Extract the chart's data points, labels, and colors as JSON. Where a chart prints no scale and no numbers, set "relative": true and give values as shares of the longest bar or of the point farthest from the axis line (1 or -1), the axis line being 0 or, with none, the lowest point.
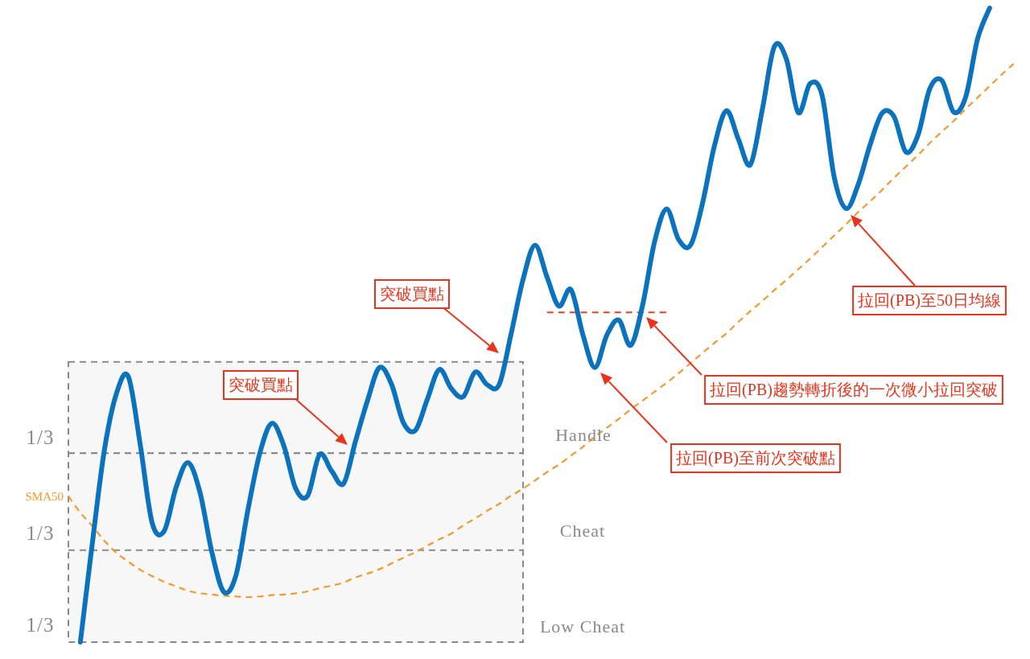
{
  "chart_data": {
    "type": "line",
    "relative": true,
    "categories": [
      null,
      null,
      null,
      null,
      null,
      null,
      null,
      null,
      null,
      null,
      null,
      null,
      null,
      null,
      null,
      null,
      null,
      null,
      null,
      null,
      null,
      null,
      null,
      null,
      null,
      null,
      null,
      null,
      null,
      null,
      null,
      null,
      null,
      null,
      null,
      null,
      null,
      null,
      null,
      null,
      null,
      null,
      null,
      null,
      null,
      null,
      null,
      null,
      null,
      null,
      null,
      null,
      null,
      null,
      null,
      null,
      null,
      null,
      null,
      null,
      null,
      null,
      null,
      null,
      null,
      null,
      null,
      null,
      null,
      null,
      null,
      null,
      null,
      null,
      null,
      null,
      null,
      null,
      null,
      null
    ],
    "series": [
      {
        "color": "#0b72bd",
        "values": [
          null,
          0,
          0.156,
          0.302,
          0.391,
          0.419,
          0.312,
          0.188,
          0.175,
          0.244,
          0.283,
          0.236,
          0.141,
          0.079,
          0.105,
          0.208,
          0.298,
          0.345,
          0.31,
          0.242,
          0.231,
          0.296,
          0.27,
          0.25,
          0.317,
          0.381,
          0.433,
          0.407,
          0.346,
          0.334,
          0.383,
          0.43,
          0.4,
          0.387,
          0.426,
          0.406,
          0.406,
          0.486,
          0.572,
          0.626,
          0.576,
          0.53,
          0.556,
          0.485,
          0.433,
          0.484,
          0.508,
          0.468,
          0.532,
          0.632,
          0.683,
          0.635,
          0.626,
          0.692,
          0.783,
          0.838,
          0.793,
          0.753,
          0.84,
          0.939,
          0.92,
          0.835,
          0.881,
          0.862,
          0.734,
          0.684,
          0.721,
          0.784,
          0.834,
          0.829,
          0.773,
          0.799,
          0.873,
          0.886,
          0.836,
          0.86,
          0.952,
          1,
          null,
          null
        ]
      },
      {
        "name": "SMA50",
        "color": "#f39a2e",
        "line_style": "dashed",
        "values": [
          0.23,
          0.204,
          0.183,
          0.16,
          0.141,
          0.127,
          0.114,
          0.104,
          0.095,
          0.088,
          0.081,
          0.077,
          0.075,
          0.073,
          0.072,
          0.071,
          0.072,
          0.074,
          0.075,
          0.077,
          0.08,
          0.085,
          0.089,
          0.094,
          0.102,
          0.108,
          0.115,
          0.124,
          0.133,
          0.142,
          0.152,
          0.162,
          0.171,
          0.184,
          0.195,
          0.207,
          0.218,
          0.231,
          0.242,
          0.255,
          0.268,
          0.28,
          0.294,
          0.308,
          0.324,
          0.338,
          0.352,
          0.367,
          0.381,
          0.395,
          0.409,
          0.424,
          0.44,
          0.456,
          0.472,
          0.487,
          0.505,
          0.522,
          0.538,
          0.555,
          0.571,
          0.588,
          0.605,
          0.623,
          0.641,
          0.659,
          0.678,
          0.695,
          0.713,
          0.732,
          0.75,
          0.768,
          0.787,
          0.805,
          0.822,
          0.841,
          0.859,
          0.877,
          0.895,
          0.912
        ]
      },
      {
        "color": "#8a8a8a",
        "line_style": "dashed",
        "values": [
          0.298,
          0.298,
          0.298,
          0.298,
          0.298,
          0.298,
          0.298,
          0.298,
          0.298,
          0.298,
          0.298,
          0.298,
          0.298,
          0.298,
          0.298,
          0.298,
          0.298,
          0.298,
          0.298,
          0.298,
          0.298,
          0.298,
          0.298,
          0.298,
          0.298,
          0.298,
          0.298,
          0.298,
          0.298,
          0.298,
          0.298,
          0.298,
          0.298,
          0.298,
          0.298,
          0.298,
          0.298,
          0.298,
          0.298,
          null,
          null,
          null,
          null,
          null,
          null,
          null,
          null,
          null,
          null,
          null,
          null,
          null,
          null,
          null,
          null,
          null,
          null,
          null,
          null,
          null,
          null,
          null,
          null,
          null,
          null,
          null,
          null,
          null,
          null,
          null,
          null,
          null,
          null,
          null,
          null,
          null,
          null,
          null,
          null,
          null
        ],
        "lower": [
          0,
          0,
          0,
          0,
          0,
          0,
          0,
          0,
          0,
          0,
          0,
          0,
          0,
          0,
          0,
          0,
          0,
          0,
          0,
          0,
          0,
          0,
          0,
          0,
          0,
          0,
          0,
          0,
          0,
          0,
          0,
          0,
          0,
          0,
          0,
          0,
          0,
          0,
          0,
          null,
          null,
          null,
          null,
          null,
          null,
          null,
          null,
          null,
          null,
          null,
          null,
          null,
          null,
          null,
          null,
          null,
          null,
          null,
          null,
          null,
          null,
          null,
          null,
          null,
          null,
          null,
          null,
          null,
          null,
          null,
          null,
          null,
          null,
          null,
          null,
          null,
          null,
          null,
          null,
          null
        ],
        "upper": [
          0.442,
          0.442,
          0.442,
          0.442,
          0.442,
          0.442,
          0.442,
          0.442,
          0.442,
          0.442,
          0.442,
          0.442,
          0.442,
          0.442,
          0.442,
          0.442,
          0.442,
          0.442,
          0.442,
          0.442,
          0.442,
          0.442,
          0.442,
          0.442,
          0.442,
          0.442,
          0.442,
          0.442,
          0.442,
          0.442,
          0.442,
          0.442,
          0.442,
          0.442,
          0.442,
          0.442,
          0.442,
          0.442,
          0.442,
          null,
          null,
          null,
          null,
          null,
          null,
          null,
          null,
          null,
          null,
          null,
          null,
          null,
          null,
          null,
          null,
          null,
          null,
          null,
          null,
          null,
          null,
          null,
          null,
          null,
          null,
          null,
          null,
          null,
          null,
          null,
          null,
          null,
          null,
          null,
          null,
          null,
          null,
          null,
          null,
          null
        ]
      },
      {
        "color": "#8a8a8a",
        "line_style": "dashed",
        "values": [
          0.145,
          0.145,
          0.145,
          0.145,
          0.145,
          0.145,
          0.145,
          0.145,
          0.145,
          0.145,
          0.145,
          0.145,
          0.145,
          0.145,
          0.145,
          0.145,
          0.145,
          0.145,
          0.145,
          0.145,
          0.145,
          0.145,
          0.145,
          0.145,
          0.145,
          0.145,
          0.145,
          0.145,
          0.145,
          0.145,
          0.145,
          0.145,
          0.145,
          0.145,
          0.145,
          0.145,
          0.145,
          0.145,
          0.145,
          null,
          null,
          null,
          null,
          null,
          null,
          null,
          null,
          null,
          null,
          null,
          null,
          null,
          null,
          null,
          null,
          null,
          null,
          null,
          null,
          null,
          null,
          null,
          null,
          null,
          null,
          null,
          null,
          null,
          null,
          null,
          null,
          null,
          null,
          null,
          null,
          null,
          null,
          null,
          null,
          null
        ]
      },
      {
        "color": "#e8402a",
        "line_style": "dashed",
        "values": [
          null,
          null,
          null,
          null,
          null,
          null,
          null,
          null,
          null,
          null,
          null,
          null,
          null,
          null,
          null,
          null,
          null,
          null,
          null,
          null,
          null,
          null,
          null,
          null,
          null,
          null,
          null,
          null,
          null,
          null,
          null,
          null,
          null,
          null,
          null,
          null,
          null,
          null,
          null,
          null,
          0.52,
          0.52,
          0.52,
          0.52,
          0.52,
          0.52,
          0.52,
          0.52,
          0.52,
          0.52,
          0.52,
          null,
          null,
          null,
          null,
          null,
          null,
          null,
          null,
          null,
          null,
          null,
          null,
          null,
          null,
          null,
          null,
          null,
          null,
          null,
          null,
          null,
          null,
          null,
          null,
          null,
          null,
          null,
          null,
          null
        ]
      }
    ],
    "annotations": [
      "突破買點",
      "突破買點",
      "拉回(PB)至50日均線",
      "拉回(PB)趨勢轉折後的一次微小拉回突破",
      "拉回(PB)至前次突破點",
      "1/3",
      "1/3",
      "1/3",
      "Handle",
      "Cheat",
      "Low Cheat"
    ]
  }
}
